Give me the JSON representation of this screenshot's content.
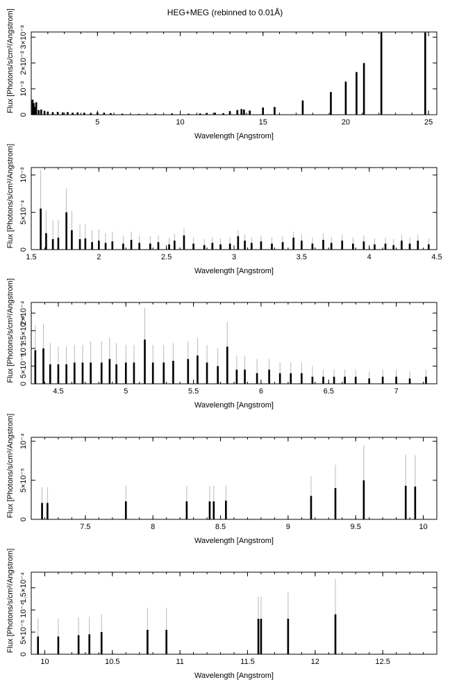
{
  "title": "HEG+MEG (rebinned to 0.01Å)",
  "colors": {
    "data": "#000000",
    "error": "#b8b8b8",
    "axis": "#000000"
  },
  "chart_data": [
    {
      "type": "bar",
      "xlabel": "Wavelength [Angstrom]",
      "ylabel": "Flux [Photons/s/cm²/Angstrom]",
      "xlim": [
        1.0,
        25.5
      ],
      "ylim": [
        0,
        0.0032
      ],
      "xticks": [
        5,
        10,
        15,
        20,
        25
      ],
      "xtick_labels": [
        "5",
        "10",
        "15",
        "20",
        "25"
      ],
      "yticks": [
        0.001,
        0.002,
        0.003
      ],
      "ytick_labels": [
        "10⁻³",
        "2×10⁻³",
        "3×10⁻³"
      ],
      "grid": false,
      "points": [
        [
          1.08,
          0.00058,
          0
        ],
        [
          1.15,
          0.00045,
          0
        ],
        [
          1.22,
          0.0003,
          0
        ],
        [
          1.3,
          0.00048,
          0
        ],
        [
          1.45,
          0.00018,
          0
        ],
        [
          1.6,
          0.0002,
          0
        ],
        [
          1.8,
          0.00015,
          0
        ],
        [
          2.0,
          0.00012,
          0
        ],
        [
          2.3,
          0.0001,
          0
        ],
        [
          2.6,
          0.00011,
          0
        ],
        [
          2.9,
          9e-05,
          0
        ],
        [
          3.2,
          0.0001,
          0
        ],
        [
          3.5,
          8e-05,
          0
        ],
        [
          3.8,
          9e-05,
          0
        ],
        [
          4.2,
          8e-05,
          0
        ],
        [
          4.6,
          7e-05,
          0
        ],
        [
          5.0,
          9e-05,
          0
        ],
        [
          5.4,
          8e-05,
          0
        ],
        [
          5.8,
          6e-05,
          0
        ],
        [
          6.5,
          4e-05,
          0
        ],
        [
          7.5,
          3e-05,
          0
        ],
        [
          8.5,
          4e-05,
          0
        ],
        [
          9.5,
          5e-05,
          0
        ],
        [
          10.5,
          4e-05,
          0
        ],
        [
          11.2,
          5e-05,
          0
        ],
        [
          11.6,
          7e-05,
          0
        ],
        [
          12.1,
          8e-05,
          0
        ],
        [
          12.6,
          6e-05,
          0
        ],
        [
          13.0,
          0.00014,
          0
        ],
        [
          13.45,
          0.00018,
          0
        ],
        [
          13.7,
          0.00022,
          0
        ],
        [
          13.85,
          0.0002,
          0
        ],
        [
          14.2,
          0.00016,
          0
        ],
        [
          15.0,
          0.00028,
          0
        ],
        [
          15.7,
          0.0003,
          0
        ],
        [
          17.4,
          0.00055,
          0
        ],
        [
          19.1,
          0.00088,
          0
        ],
        [
          20.0,
          0.00128,
          0
        ],
        [
          20.65,
          0.00165,
          0
        ],
        [
          21.1,
          0.002,
          0
        ],
        [
          22.15,
          0.0032,
          0
        ],
        [
          24.8,
          0.00318,
          0
        ]
      ]
    },
    {
      "type": "bar",
      "xlabel": "Wavelength [Angstrom]",
      "ylabel": "Flux [Photons/s/cm²/Angstrom]",
      "xlim": [
        1.5,
        4.5
      ],
      "ylim": [
        0,
        0.0011
      ],
      "xticks": [
        1.5,
        2,
        2.5,
        3,
        3.5,
        4,
        4.5
      ],
      "xtick_labels": [
        "1.5",
        "2",
        "2.5",
        "3",
        "3.5",
        "4",
        "4.5"
      ],
      "yticks": [
        0.0005,
        0.001
      ],
      "ytick_labels": [
        "5×10⁻⁴",
        "10⁻³"
      ],
      "grid": false,
      "points": [
        [
          1.57,
          0.00055,
          0.00052
        ],
        [
          1.61,
          0.00022,
          0.0003
        ],
        [
          1.66,
          0.00014,
          0.00025
        ],
        [
          1.7,
          0.00016,
          0.00024
        ],
        [
          1.76,
          0.0005,
          0.00032
        ],
        [
          1.8,
          0.00026,
          0.00026
        ],
        [
          1.86,
          0.00014,
          0.0002
        ],
        [
          1.9,
          0.00015,
          0.00019
        ],
        [
          1.95,
          0.0001,
          0.00016
        ],
        [
          2.0,
          0.00012,
          0.00015
        ],
        [
          2.05,
          9e-05,
          0.00013
        ],
        [
          2.1,
          0.00011,
          0.00013
        ],
        [
          2.18,
          8e-05,
          0.00011
        ],
        [
          2.24,
          0.00013,
          0.00011
        ],
        [
          2.3,
          9e-05,
          0.0001
        ],
        [
          2.38,
          8e-05,
          0.0001
        ],
        [
          2.44,
          0.0001,
          9e-05
        ],
        [
          2.52,
          7e-05,
          9e-05
        ],
        [
          2.56,
          0.00012,
          9e-05
        ],
        [
          2.63,
          0.00019,
          9e-05
        ],
        [
          2.7,
          8e-05,
          8e-05
        ],
        [
          2.78,
          6e-05,
          8e-05
        ],
        [
          2.84,
          9e-05,
          8e-05
        ],
        [
          2.9,
          7e-05,
          8e-05
        ],
        [
          2.97,
          8e-05,
          8e-05
        ],
        [
          3.03,
          0.00018,
          8e-05
        ],
        [
          3.08,
          0.00012,
          8e-05
        ],
        [
          3.13,
          9e-05,
          8e-05
        ],
        [
          3.2,
          0.00011,
          8e-05
        ],
        [
          3.28,
          8e-05,
          8e-05
        ],
        [
          3.36,
          0.0001,
          8e-05
        ],
        [
          3.44,
          0.00016,
          8e-05
        ],
        [
          3.5,
          0.00012,
          8e-05
        ],
        [
          3.58,
          8e-05,
          8e-05
        ],
        [
          3.66,
          0.00013,
          8e-05
        ],
        [
          3.72,
          9e-05,
          8e-05
        ],
        [
          3.8,
          0.00012,
          8e-05
        ],
        [
          3.88,
          8e-05,
          8e-05
        ],
        [
          3.96,
          0.00011,
          8e-05
        ],
        [
          4.04,
          7e-05,
          8e-05
        ],
        [
          4.12,
          8e-05,
          8e-05
        ],
        [
          4.18,
          6e-05,
          8e-05
        ],
        [
          4.24,
          0.00012,
          8e-05
        ],
        [
          4.3,
          8e-05,
          8e-05
        ],
        [
          4.36,
          0.00012,
          8e-05
        ],
        [
          4.44,
          7e-05,
          8e-05
        ]
      ]
    },
    {
      "type": "bar",
      "xlabel": "Wavelength [Angstrom]",
      "ylabel": "Flux [Photons/s/cm²/Angstrom]",
      "xlim": [
        4.3,
        7.3
      ],
      "ylim": [
        0,
        0.00023
      ],
      "xticks": [
        4.5,
        5,
        5.5,
        6,
        6.5,
        7
      ],
      "xtick_labels": [
        "4.5",
        "5",
        "5.5",
        "6",
        "6.5",
        "7"
      ],
      "yticks": [
        5e-05,
        0.0001,
        0.00015,
        0.0002
      ],
      "ytick_labels": [
        "5×10⁻⁵",
        "10⁻⁴",
        "1.5×10⁻⁴",
        "2×10⁻⁴"
      ],
      "grid": false,
      "points": [
        [
          4.33,
          9.5e-05,
          7e-05
        ],
        [
          4.39,
          0.0001,
          7e-05
        ],
        [
          4.44,
          5.5e-05,
          6e-05
        ],
        [
          4.5,
          5.5e-05,
          5e-05
        ],
        [
          4.56,
          5.5e-05,
          5e-05
        ],
        [
          4.62,
          6e-05,
          5e-05
        ],
        [
          4.68,
          6e-05,
          5e-05
        ],
        [
          4.74,
          6e-05,
          6e-05
        ],
        [
          4.82,
          6e-05,
          6e-05
        ],
        [
          4.88,
          7e-05,
          6e-05
        ],
        [
          4.93,
          5.5e-05,
          6e-05
        ],
        [
          5.0,
          6e-05,
          5e-05
        ],
        [
          5.06,
          6e-05,
          5e-05
        ],
        [
          5.14,
          0.000125,
          9e-05
        ],
        [
          5.2,
          6e-05,
          5e-05
        ],
        [
          5.28,
          6e-05,
          5e-05
        ],
        [
          5.35,
          6.5e-05,
          5e-05
        ],
        [
          5.46,
          7e-05,
          5e-05
        ],
        [
          5.53,
          8e-05,
          5e-05
        ],
        [
          5.6,
          6e-05,
          5e-05
        ],
        [
          5.68,
          5e-05,
          5e-05
        ],
        [
          5.75,
          0.000105,
          7e-05
        ],
        [
          5.82,
          4e-05,
          4e-05
        ],
        [
          5.88,
          4e-05,
          4e-05
        ],
        [
          5.97,
          3e-05,
          4e-05
        ],
        [
          6.06,
          4e-05,
          3e-05
        ],
        [
          6.14,
          3e-05,
          3e-05
        ],
        [
          6.22,
          3e-05,
          3e-05
        ],
        [
          6.3,
          3e-05,
          3e-05
        ],
        [
          6.38,
          2e-05,
          3e-05
        ],
        [
          6.46,
          2e-05,
          2e-05
        ],
        [
          6.54,
          2e-05,
          2e-05
        ],
        [
          6.62,
          2e-05,
          2e-05
        ],
        [
          6.7,
          2e-05,
          2e-05
        ],
        [
          6.8,
          1.5e-05,
          2e-05
        ],
        [
          6.9,
          2e-05,
          2e-05
        ],
        [
          7.0,
          2e-05,
          2e-05
        ],
        [
          7.1,
          1.5e-05,
          2e-05
        ],
        [
          7.22,
          2e-05,
          2e-05
        ]
      ]
    },
    {
      "type": "bar",
      "xlabel": "Wavelength [Angstrom]",
      "ylabel": "Flux [Photons/s/cm²/Angstrom]",
      "xlim": [
        7.1,
        10.1
      ],
      "ylim": [
        0,
        0.000105
      ],
      "xticks": [
        7.5,
        8,
        8.5,
        9,
        9.5,
        10
      ],
      "xtick_labels": [
        "7.5",
        "8",
        "8.5",
        "9",
        "9.5",
        "10"
      ],
      "yticks": [
        5e-05,
        0.0001
      ],
      "ytick_labels": [
        "5×10⁻⁵",
        "10⁻⁴"
      ],
      "grid": false,
      "points": [
        [
          7.18,
          2.1e-05,
          2e-05
        ],
        [
          7.22,
          2.1e-05,
          2e-05
        ],
        [
          7.8,
          2.3e-05,
          2e-05
        ],
        [
          8.25,
          2.3e-05,
          2e-05
        ],
        [
          8.42,
          2.3e-05,
          2e-05
        ],
        [
          8.45,
          2.3e-05,
          2e-05
        ],
        [
          8.54,
          2.4e-05,
          2e-05
        ],
        [
          9.17,
          3e-05,
          2.5e-05
        ],
        [
          9.35,
          4e-05,
          3e-05
        ],
        [
          9.56,
          5e-05,
          4.5e-05
        ],
        [
          9.87,
          4.3e-05,
          4e-05
        ],
        [
          9.94,
          4.2e-05,
          4e-05
        ]
      ]
    },
    {
      "type": "bar",
      "xlabel": "Wavelength [Angstrom]",
      "ylabel": "Flux [Photons/s/cm²/Angstrom]",
      "xlim": [
        9.9,
        12.9
      ],
      "ylim": [
        0,
        0.000185
      ],
      "xticks": [
        10,
        10.5,
        11,
        11.5,
        12,
        12.5
      ],
      "xtick_labels": [
        "10",
        "10.5",
        "11",
        "11.5",
        "12",
        "12.5"
      ],
      "yticks": [
        5e-05,
        0.0001,
        0.00015
      ],
      "ytick_labels": [
        "5×10⁻⁵",
        "10⁻⁴",
        "1.5×10⁻⁴"
      ],
      "grid": false,
      "points": [
        [
          9.95,
          4e-05,
          4e-05
        ],
        [
          10.1,
          4e-05,
          4e-05
        ],
        [
          10.25,
          4.3e-05,
          4e-05
        ],
        [
          10.33,
          4.5e-05,
          4e-05
        ],
        [
          10.42,
          5e-05,
          4e-05
        ],
        [
          10.76,
          5.5e-05,
          5e-05
        ],
        [
          10.9,
          5.5e-05,
          5e-05
        ],
        [
          11.58,
          8e-05,
          5e-05
        ],
        [
          11.6,
          8e-05,
          5e-05
        ],
        [
          11.8,
          8e-05,
          6e-05
        ],
        [
          12.15,
          9e-05,
          8e-05
        ]
      ]
    }
  ]
}
